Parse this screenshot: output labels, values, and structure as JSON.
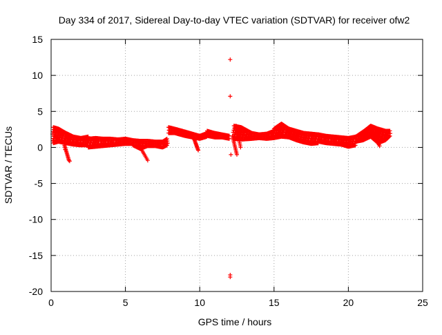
{
  "chart_data": {
    "type": "scatter",
    "title": "Day 334 of 2017, Sidereal Day-to-day VTEC variation (SDTVAR) for receiver ofw2",
    "xlabel": "GPS time / hours",
    "ylabel": "SDTVAR / TECUs",
    "xlim": [
      0,
      25
    ],
    "ylim": [
      -20,
      15
    ],
    "xticks": [
      0,
      5,
      10,
      15,
      20,
      25
    ],
    "yticks": [
      -20,
      -15,
      -10,
      -5,
      0,
      5,
      10,
      15
    ],
    "grid": true,
    "legend": "none",
    "marker": "+",
    "series": [
      {
        "name": "SDTVAR",
        "color": "#ff0000",
        "bands": [
          {
            "x": [
              0.15,
              0.5,
              1.0,
              1.5,
              2.0,
              2.5
            ],
            "y_upper": [
              2.8,
              2.6,
              2.0,
              1.5,
              1.3,
              1.5
            ],
            "y_lower": [
              0.6,
              0.8,
              0.6,
              0.4,
              0.3,
              0.3
            ]
          },
          {
            "x": [
              2.5,
              3.0,
              3.5,
              4.0,
              4.5,
              5.0,
              5.5
            ],
            "y_upper": [
              1.2,
              1.3,
              1.2,
              1.2,
              1.1,
              1.2,
              1.0
            ],
            "y_lower": [
              0.0,
              0.1,
              0.2,
              0.3,
              0.4,
              0.5,
              0.5
            ]
          },
          {
            "x": [
              5.5,
              6.0,
              6.5,
              7.0,
              7.5,
              7.8
            ],
            "y_upper": [
              1.0,
              0.9,
              0.9,
              0.8,
              0.8,
              1.2
            ],
            "y_lower": [
              0.3,
              -0.2,
              0.2,
              0.2,
              0.0,
              0.3
            ]
          },
          {
            "x": [
              7.9,
              8.3,
              9.0,
              9.5,
              10.0,
              10.5
            ],
            "y_upper": [
              2.8,
              2.6,
              2.2,
              1.9,
              1.6,
              2.0
            ],
            "y_lower": [
              2.0,
              2.0,
              1.6,
              1.4,
              1.2,
              1.5
            ]
          },
          {
            "x": [
              10.5,
              11.0,
              11.5,
              12.0
            ],
            "y_upper": [
              2.3,
              2.0,
              1.8,
              1.6
            ],
            "y_lower": [
              1.6,
              1.4,
              1.4,
              1.2
            ]
          },
          {
            "x": [
              12.3,
              12.8,
              13.5,
              14.0,
              14.5,
              15.0
            ],
            "y_upper": [
              3.0,
              2.8,
              2.0,
              1.8,
              1.9,
              2.3
            ],
            "y_lower": [
              1.2,
              1.1,
              1.2,
              1.3,
              1.2,
              1.3
            ]
          },
          {
            "x": [
              15.0,
              15.5,
              16.0,
              16.5,
              17.0,
              17.5,
              18.0
            ],
            "y_upper": [
              2.6,
              3.3,
              2.6,
              2.3,
              2.0,
              1.9,
              1.8
            ],
            "y_lower": [
              1.3,
              1.5,
              1.4,
              1.0,
              0.7,
              0.5,
              0.6
            ]
          },
          {
            "x": [
              18.0,
              18.5,
              19.0,
              19.5,
              20.0,
              20.5
            ],
            "y_upper": [
              1.8,
              1.6,
              1.5,
              1.4,
              1.3,
              1.5
            ],
            "y_lower": [
              0.8,
              0.6,
              0.5,
              0.4,
              0.1,
              0.3
            ]
          },
          {
            "x": [
              20.5,
              21.0,
              21.5,
              22.0,
              22.5,
              22.8
            ],
            "y_upper": [
              1.5,
              2.2,
              3.0,
              2.6,
              2.3,
              2.3
            ],
            "y_lower": [
              0.8,
              1.0,
              1.5,
              0.6,
              1.0,
              1.6
            ]
          }
        ],
        "streaks": [
          {
            "from": [
              0.9,
              0.3
            ],
            "to": [
              1.2,
              -1.8
            ]
          },
          {
            "from": [
              5.75,
              0.9
            ],
            "to": [
              6.5,
              -1.8
            ]
          },
          {
            "from": [
              9.6,
              1.3
            ],
            "to": [
              9.9,
              -0.4
            ]
          },
          {
            "from": [
              12.2,
              1.6
            ],
            "to": [
              12.5,
              -1.0
            ]
          },
          {
            "from": [
              12.45,
              3.0
            ],
            "to": [
              12.75,
              0.0
            ]
          },
          {
            "from": [
              21.5,
              2.7
            ],
            "to": [
              22.1,
              0.2
            ]
          }
        ],
        "isolated_points": [
          {
            "x": 12.05,
            "y": 12.2
          },
          {
            "x": 12.05,
            "y": 7.1
          },
          {
            "x": 12.05,
            "y": -17.7
          },
          {
            "x": 12.05,
            "y": -18.0
          },
          {
            "x": 0.95,
            "y": -0.3
          },
          {
            "x": 1.25,
            "y": -1.9
          },
          {
            "x": 12.1,
            "y": -1.0
          }
        ]
      }
    ]
  }
}
